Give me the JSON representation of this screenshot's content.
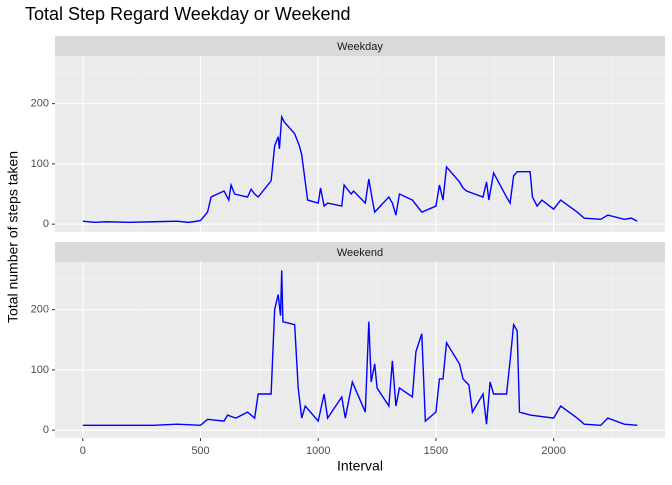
{
  "title": "Total Step Regard Weekday or Weekend",
  "x_label": "Interval",
  "y_label": "Total number of steps taken",
  "chart_data": [
    {
      "type": "line",
      "strip": "Weekday",
      "color": "#0000ff",
      "grid": true,
      "x": [
        0,
        50,
        100,
        200,
        300,
        400,
        450,
        500,
        530,
        545,
        600,
        620,
        630,
        645,
        700,
        715,
        730,
        745,
        800,
        815,
        830,
        835,
        845,
        855,
        900,
        920,
        930,
        945,
        955,
        1000,
        1010,
        1025,
        1040,
        1100,
        1110,
        1140,
        1150,
        1200,
        1215,
        1230,
        1240,
        1300,
        1315,
        1330,
        1345,
        1400,
        1440,
        1500,
        1515,
        1530,
        1545,
        1600,
        1615,
        1630,
        1700,
        1715,
        1725,
        1745,
        1800,
        1815,
        1830,
        1845,
        1900,
        1910,
        1930,
        1950,
        2000,
        2030,
        2100,
        2130,
        2200,
        2230,
        2300,
        2330,
        2355
      ],
      "values": [
        5,
        3,
        4,
        3,
        4,
        5,
        3,
        6,
        20,
        45,
        55,
        40,
        65,
        50,
        45,
        58,
        50,
        45,
        72,
        130,
        145,
        125,
        178,
        170,
        150,
        130,
        115,
        70,
        40,
        35,
        60,
        30,
        35,
        30,
        65,
        50,
        55,
        35,
        75,
        40,
        20,
        45,
        35,
        15,
        50,
        40,
        20,
        30,
        65,
        40,
        95,
        70,
        60,
        55,
        45,
        70,
        40,
        85,
        45,
        35,
        80,
        87,
        87,
        45,
        30,
        40,
        25,
        40,
        20,
        10,
        8,
        15,
        8,
        10,
        5
      ],
      "xlim": [
        -118,
        2473
      ],
      "ylim": [
        -13,
        279
      ],
      "xticks": [
        0,
        500,
        1000,
        1500,
        2000
      ],
      "yticks": [
        0,
        100,
        200
      ]
    },
    {
      "type": "line",
      "strip": "Weekend",
      "color": "#0000ff",
      "grid": true,
      "x": [
        0,
        100,
        200,
        300,
        400,
        500,
        530,
        600,
        615,
        650,
        700,
        730,
        745,
        800,
        815,
        830,
        840,
        845,
        850,
        900,
        915,
        930,
        945,
        1000,
        1025,
        1040,
        1100,
        1115,
        1145,
        1200,
        1215,
        1225,
        1240,
        1250,
        1300,
        1315,
        1330,
        1345,
        1400,
        1415,
        1440,
        1455,
        1500,
        1515,
        1530,
        1545,
        1600,
        1615,
        1640,
        1655,
        1700,
        1715,
        1730,
        1745,
        1800,
        1815,
        1830,
        1845,
        1855,
        1900,
        2000,
        2030,
        2100,
        2130,
        2200,
        2230,
        2300,
        2355
      ],
      "values": [
        8,
        8,
        8,
        8,
        10,
        8,
        18,
        15,
        25,
        20,
        30,
        20,
        60,
        60,
        200,
        225,
        190,
        265,
        180,
        175,
        70,
        20,
        40,
        15,
        60,
        20,
        55,
        20,
        80,
        30,
        180,
        80,
        110,
        70,
        40,
        115,
        40,
        70,
        55,
        130,
        160,
        15,
        30,
        85,
        85,
        145,
        110,
        85,
        75,
        30,
        60,
        10,
        80,
        60,
        60,
        115,
        175,
        165,
        30,
        25,
        20,
        40,
        20,
        10,
        8,
        20,
        10,
        8
      ],
      "xlim": [
        -118,
        2473
      ],
      "ylim": [
        -13,
        279
      ],
      "xticks": [
        0,
        500,
        1000,
        1500,
        2000
      ],
      "yticks": [
        0,
        100,
        200
      ]
    }
  ]
}
